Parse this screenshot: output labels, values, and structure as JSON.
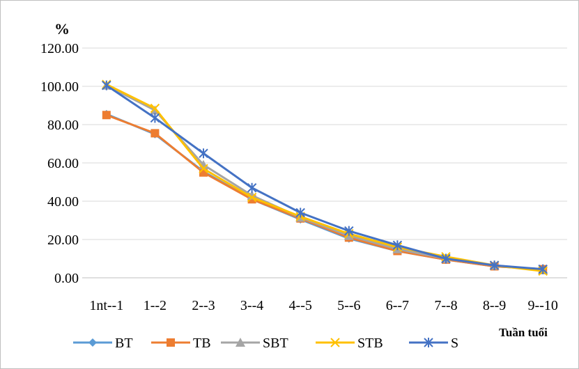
{
  "chart_data": {
    "type": "line",
    "title": "",
    "ylabel": "%",
    "xlabel": "Tuần tuổi",
    "ylim": [
      0,
      120
    ],
    "ytick_step": 20,
    "ytick_format": "0.00",
    "grid": "horizontal",
    "legend_position": "bottom",
    "categories": [
      "1nt--1",
      "1--2",
      "2--3",
      "3--4",
      "4--5",
      "5--6",
      "6--7",
      "7--8",
      "8--9",
      "9--10"
    ],
    "series": [
      {
        "name": "BT",
        "color": "#5b9bd5",
        "marker": "diamond",
        "values": [
          85.5,
          75.0,
          55.5,
          41.0,
          30.5,
          20.5,
          14.0,
          9.5,
          6.0,
          4.5
        ]
      },
      {
        "name": "TB",
        "color": "#ed7d31",
        "marker": "square",
        "values": [
          85.0,
          75.5,
          55.0,
          41.0,
          31.0,
          21.0,
          14.0,
          9.5,
          6.0,
          4.5
        ]
      },
      {
        "name": "SBT",
        "color": "#a5a5a5",
        "marker": "triangle",
        "values": [
          100.5,
          87.5,
          59.0,
          43.0,
          31.5,
          22.0,
          15.0,
          10.0,
          6.5,
          4.0
        ]
      },
      {
        "name": "STB",
        "color": "#ffc000",
        "marker": "x",
        "values": [
          101.0,
          88.5,
          57.0,
          42.0,
          32.0,
          23.0,
          16.0,
          11.0,
          6.5,
          3.5
        ]
      },
      {
        "name": "S",
        "color": "#4472c4",
        "marker": "star",
        "values": [
          100.5,
          83.5,
          65.0,
          47.0,
          34.0,
          24.5,
          17.0,
          10.0,
          6.5,
          4.5
        ]
      }
    ]
  }
}
